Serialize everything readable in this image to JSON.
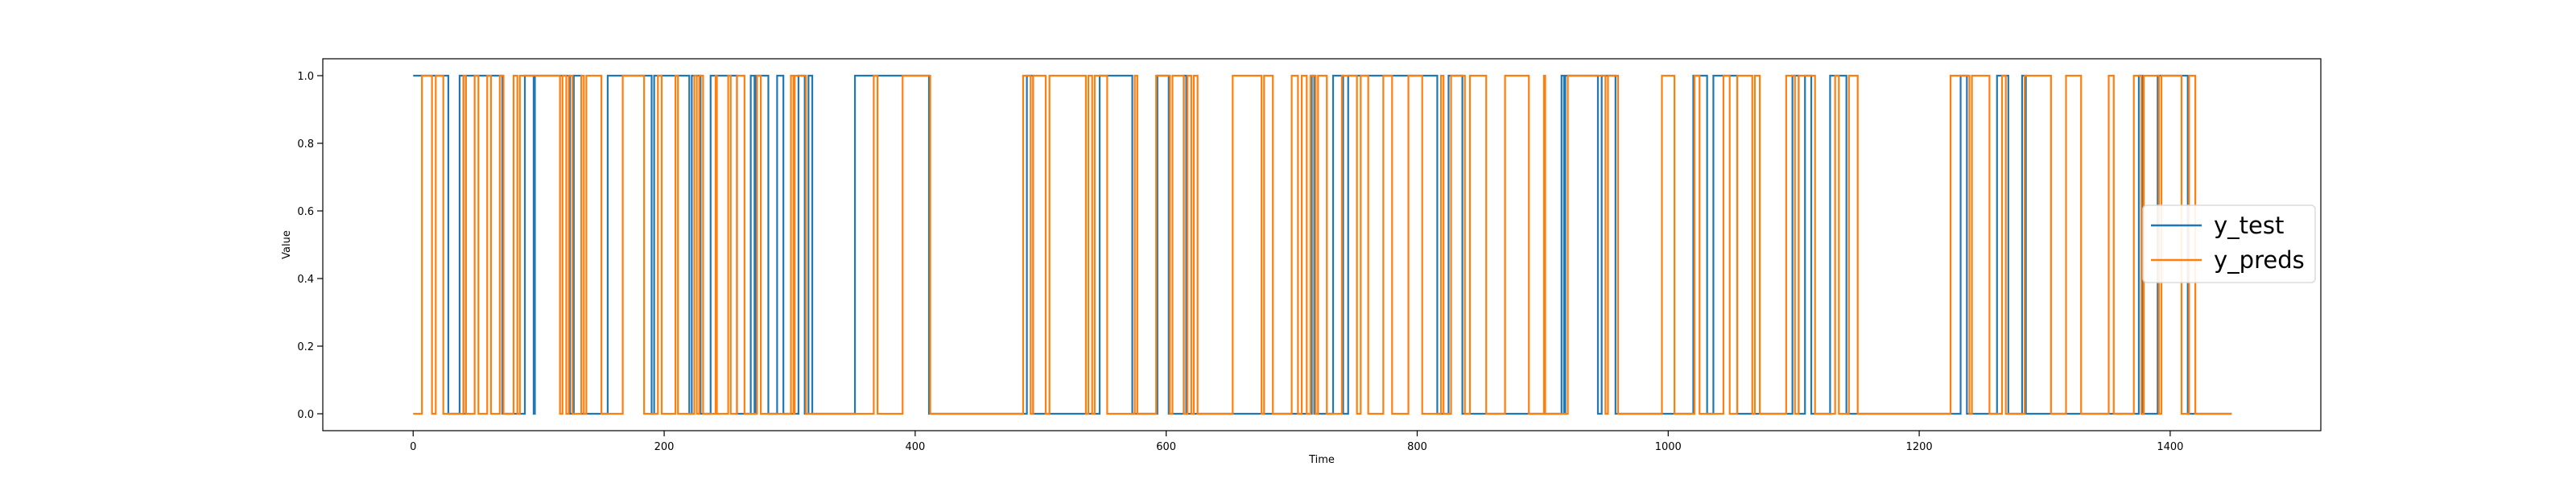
{
  "chart_data": {
    "type": "line",
    "title": "",
    "xlabel": "Time",
    "ylabel": "Value",
    "xlim": [
      -72,
      1520
    ],
    "ylim": [
      -0.05,
      1.05
    ],
    "xticks": [
      0,
      200,
      400,
      600,
      800,
      1000,
      1200,
      1400
    ],
    "yticks": [
      0.0,
      0.2,
      0.4,
      0.6,
      0.8,
      1.0
    ],
    "xtick_labels": [
      "0",
      "200",
      "400",
      "600",
      "800",
      "1000",
      "1200",
      "1400"
    ],
    "ytick_labels": [
      "0.0",
      "0.2",
      "0.4",
      "0.6",
      "0.8",
      "1.0"
    ],
    "grid": false,
    "legend_position": "right",
    "series": [
      {
        "name": "y_test",
        "color": "#1f77b4",
        "steps": [
          [
            0,
            1
          ],
          [
            28,
            0
          ],
          [
            37,
            1
          ],
          [
            40,
            0
          ],
          [
            42,
            1
          ],
          [
            71,
            0
          ],
          [
            89,
            1
          ],
          [
            96,
            0
          ],
          [
            97,
            1
          ],
          [
            125,
            0
          ],
          [
            128,
            1
          ],
          [
            134,
            0
          ],
          [
            155,
            1
          ],
          [
            190,
            0
          ],
          [
            192,
            1
          ],
          [
            220,
            0
          ],
          [
            222,
            1
          ],
          [
            229,
            0
          ],
          [
            237,
            1
          ],
          [
            258,
            0
          ],
          [
            269,
            1
          ],
          [
            272,
            0
          ],
          [
            273,
            1
          ],
          [
            283,
            0
          ],
          [
            290,
            1
          ],
          [
            295,
            0
          ],
          [
            307,
            1
          ],
          [
            312,
            0
          ],
          [
            315,
            1
          ],
          [
            318,
            0
          ],
          [
            352,
            1
          ],
          [
            411,
            0
          ],
          [
            489,
            1
          ],
          [
            494,
            0
          ],
          [
            547,
            1
          ],
          [
            573,
            0
          ],
          [
            593,
            1
          ],
          [
            602,
            0
          ],
          [
            614,
            1
          ],
          [
            616,
            0
          ],
          [
            716,
            1
          ],
          [
            718,
            0
          ],
          [
            733,
            1
          ],
          [
            741,
            0
          ],
          [
            745,
            1
          ],
          [
            816,
            0
          ],
          [
            825,
            1
          ],
          [
            836,
            0
          ],
          [
            915,
            1
          ],
          [
            917,
            0
          ],
          [
            918,
            1
          ],
          [
            944,
            0
          ],
          [
            947,
            1
          ],
          [
            958,
            0
          ],
          [
            1020,
            1
          ],
          [
            1031,
            0
          ],
          [
            1036,
            1
          ],
          [
            1055,
            0
          ],
          [
            1099,
            1
          ],
          [
            1104,
            0
          ],
          [
            1109,
            1
          ],
          [
            1114,
            0
          ],
          [
            1129,
            1
          ],
          [
            1142,
            0
          ],
          [
            1233,
            1
          ],
          [
            1238,
            0
          ],
          [
            1262,
            1
          ],
          [
            1271,
            0
          ],
          [
            1282,
            1
          ],
          [
            1285,
            0
          ],
          [
            1375,
            1
          ],
          [
            1378,
            0
          ],
          [
            1390,
            1
          ],
          [
            1414,
            0
          ],
          [
            1449,
            0
          ]
        ]
      },
      {
        "name": "y_preds",
        "color": "#ff7f0e",
        "steps": [
          [
            0,
            0
          ],
          [
            7,
            1
          ],
          [
            15,
            0
          ],
          [
            18,
            1
          ],
          [
            24,
            0
          ],
          [
            40,
            1
          ],
          [
            42,
            0
          ],
          [
            49,
            1
          ],
          [
            52,
            0
          ],
          [
            59,
            1
          ],
          [
            62,
            0
          ],
          [
            69,
            1
          ],
          [
            72,
            0
          ],
          [
            80,
            1
          ],
          [
            83,
            0
          ],
          [
            85,
            1
          ],
          [
            117,
            0
          ],
          [
            119,
            1
          ],
          [
            122,
            0
          ],
          [
            124,
            1
          ],
          [
            127,
            0
          ],
          [
            134,
            1
          ],
          [
            136,
            0
          ],
          [
            138,
            1
          ],
          [
            150,
            0
          ],
          [
            167,
            1
          ],
          [
            184,
            0
          ],
          [
            195,
            1
          ],
          [
            198,
            0
          ],
          [
            209,
            1
          ],
          [
            211,
            0
          ],
          [
            224,
            1
          ],
          [
            226,
            0
          ],
          [
            228,
            1
          ],
          [
            231,
            0
          ],
          [
            241,
            1
          ],
          [
            242,
            0
          ],
          [
            251,
            1
          ],
          [
            253,
            0
          ],
          [
            258,
            1
          ],
          [
            264,
            0
          ],
          [
            274,
            1
          ],
          [
            277,
            0
          ],
          [
            301,
            1
          ],
          [
            303,
            0
          ],
          [
            304,
            1
          ],
          [
            313,
            0
          ],
          [
            367,
            1
          ],
          [
            370,
            0
          ],
          [
            390,
            1
          ],
          [
            412,
            0
          ],
          [
            486,
            1
          ],
          [
            492,
            0
          ],
          [
            494,
            1
          ],
          [
            504,
            0
          ],
          [
            507,
            1
          ],
          [
            536,
            0
          ],
          [
            538,
            1
          ],
          [
            541,
            0
          ],
          [
            543,
            1
          ],
          [
            553,
            0
          ],
          [
            575,
            1
          ],
          [
            577,
            0
          ],
          [
            592,
            1
          ],
          [
            603,
            0
          ],
          [
            605,
            1
          ],
          [
            614,
            0
          ],
          [
            617,
            1
          ],
          [
            620,
            0
          ],
          [
            622,
            1
          ],
          [
            625,
            0
          ],
          [
            653,
            1
          ],
          [
            676,
            0
          ],
          [
            678,
            1
          ],
          [
            685,
            0
          ],
          [
            700,
            1
          ],
          [
            705,
            0
          ],
          [
            708,
            1
          ],
          [
            712,
            0
          ],
          [
            715,
            1
          ],
          [
            719,
            0
          ],
          [
            721,
            1
          ],
          [
            728,
            0
          ],
          [
            740,
            1
          ],
          [
            752,
            0
          ],
          [
            755,
            1
          ],
          [
            761,
            0
          ],
          [
            773,
            1
          ],
          [
            780,
            0
          ],
          [
            793,
            1
          ],
          [
            804,
            0
          ],
          [
            819,
            1
          ],
          [
            821,
            0
          ],
          [
            827,
            1
          ],
          [
            838,
            0
          ],
          [
            842,
            1
          ],
          [
            855,
            0
          ],
          [
            870,
            1
          ],
          [
            889,
            0
          ],
          [
            901,
            1
          ],
          [
            902,
            0
          ],
          [
            920,
            1
          ],
          [
            950,
            0
          ],
          [
            952,
            1
          ],
          [
            960,
            0
          ],
          [
            995,
            1
          ],
          [
            1005,
            0
          ],
          [
            1021,
            1
          ],
          [
            1025,
            0
          ],
          [
            1044,
            1
          ],
          [
            1049,
            0
          ],
          [
            1055,
            1
          ],
          [
            1067,
            0
          ],
          [
            1069,
            1
          ],
          [
            1073,
            0
          ],
          [
            1094,
            1
          ],
          [
            1101,
            0
          ],
          [
            1104,
            1
          ],
          [
            1117,
            0
          ],
          [
            1133,
            1
          ],
          [
            1136,
            0
          ],
          [
            1144,
            1
          ],
          [
            1151,
            0
          ],
          [
            1225,
            1
          ],
          [
            1240,
            0
          ],
          [
            1242,
            1
          ],
          [
            1256,
            0
          ],
          [
            1266,
            1
          ],
          [
            1269,
            0
          ],
          [
            1284,
            1
          ],
          [
            1305,
            0
          ],
          [
            1317,
            1
          ],
          [
            1329,
            0
          ],
          [
            1351,
            1
          ],
          [
            1355,
            0
          ],
          [
            1371,
            1
          ],
          [
            1377,
            0
          ],
          [
            1379,
            1
          ],
          [
            1391,
            0
          ],
          [
            1393,
            1
          ],
          [
            1409,
            0
          ],
          [
            1415,
            1
          ],
          [
            1420,
            0
          ],
          [
            1449,
            0
          ]
        ]
      }
    ]
  }
}
